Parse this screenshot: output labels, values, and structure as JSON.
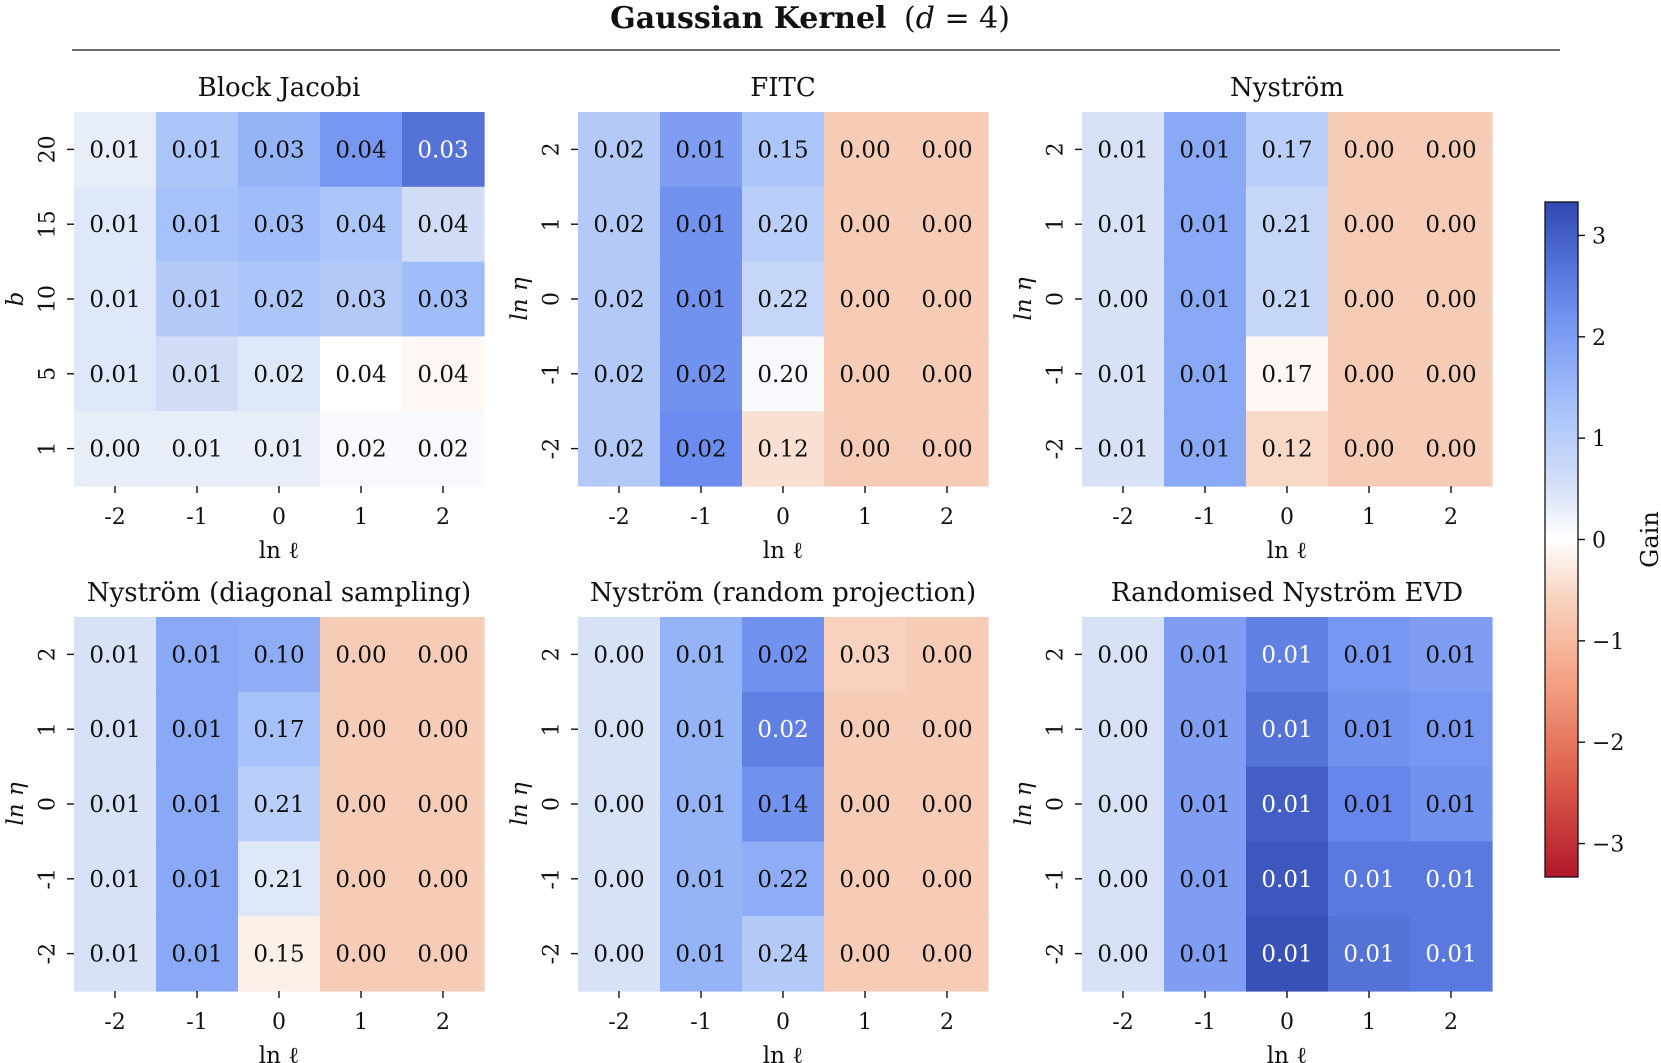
{
  "chart_data": {
    "type": "heatmap",
    "title": "Gaussian Kernel (d = 4)",
    "title_parts": {
      "bold": "Gaussian Kernel",
      "paren_open": "(",
      "var": "d",
      "rest": " = 4)"
    },
    "colorbar": {
      "label": "Gain",
      "vmin": -3.33,
      "vmax": 3.33,
      "ticks": [
        3,
        2,
        1,
        0,
        -1,
        -2,
        -3
      ],
      "tick_labels": [
        "3",
        "2",
        "1",
        "0",
        "−1",
        "−2",
        "−3"
      ],
      "colormap": "coolwarm_r"
    },
    "panels": [
      {
        "title": "Block Jacobi",
        "xlabel": "ln ℓ",
        "ylabel": "b",
        "x_ticks": [
          "-2",
          "-1",
          "0",
          "1",
          "2"
        ],
        "y_ticks": [
          "20",
          "15",
          "10",
          "5",
          "1"
        ],
        "gain": [
          [
            0.3,
            1.2,
            1.6,
            2.1,
            2.7
          ],
          [
            0.4,
            1.3,
            1.4,
            1.2,
            0.6
          ],
          [
            0.4,
            1.1,
            1.2,
            1.1,
            1.4
          ],
          [
            0.4,
            0.6,
            0.4,
            0.0,
            -0.1
          ],
          [
            0.3,
            0.3,
            0.3,
            0.1,
            0.1
          ]
        ],
        "labels": [
          [
            "0.01",
            "0.01",
            "0.03",
            "0.04",
            "0.03"
          ],
          [
            "0.01",
            "0.01",
            "0.03",
            "0.04",
            "0.04"
          ],
          [
            "0.01",
            "0.01",
            "0.02",
            "0.03",
            "0.03"
          ],
          [
            "0.01",
            "0.01",
            "0.02",
            "0.04",
            "0.04"
          ],
          [
            "0.00",
            "0.01",
            "0.01",
            "0.02",
            "0.02"
          ]
        ]
      },
      {
        "title": "FITC",
        "xlabel": "ln ℓ",
        "ylabel": "ln η",
        "x_ticks": [
          "-2",
          "-1",
          "0",
          "1",
          "2"
        ],
        "y_ticks": [
          "2",
          "1",
          "0",
          "-1",
          "-2"
        ],
        "gain": [
          [
            1.1,
            2.0,
            1.2,
            -0.7,
            -0.7
          ],
          [
            1.1,
            2.2,
            1.0,
            -0.7,
            -0.7
          ],
          [
            1.1,
            2.2,
            0.8,
            -0.7,
            -0.7
          ],
          [
            1.1,
            2.2,
            0.1,
            -0.7,
            -0.7
          ],
          [
            1.1,
            2.3,
            -0.4,
            -0.7,
            -0.7
          ]
        ],
        "labels": [
          [
            "0.02",
            "0.01",
            "0.15",
            "0.00",
            "0.00"
          ],
          [
            "0.02",
            "0.01",
            "0.20",
            "0.00",
            "0.00"
          ],
          [
            "0.02",
            "0.01",
            "0.22",
            "0.00",
            "0.00"
          ],
          [
            "0.02",
            "0.02",
            "0.20",
            "0.00",
            "0.00"
          ],
          [
            "0.02",
            "0.02",
            "0.12",
            "0.00",
            "0.00"
          ]
        ]
      },
      {
        "title": "Nyström",
        "xlabel": "ln ℓ",
        "ylabel": "ln η",
        "x_ticks": [
          "-2",
          "-1",
          "0",
          "1",
          "2"
        ],
        "y_ticks": [
          "2",
          "1",
          "0",
          "-1",
          "-2"
        ],
        "gain": [
          [
            0.5,
            1.8,
            1.0,
            -0.7,
            -0.7
          ],
          [
            0.5,
            1.8,
            0.8,
            -0.7,
            -0.7
          ],
          [
            0.5,
            1.8,
            0.8,
            -0.7,
            -0.7
          ],
          [
            0.5,
            1.8,
            -0.1,
            -0.7,
            -0.7
          ],
          [
            0.5,
            1.8,
            -0.5,
            -0.7,
            -0.7
          ]
        ],
        "labels": [
          [
            "0.01",
            "0.01",
            "0.17",
            "0.00",
            "0.00"
          ],
          [
            "0.01",
            "0.01",
            "0.21",
            "0.00",
            "0.00"
          ],
          [
            "0.00",
            "0.01",
            "0.21",
            "0.00",
            "0.00"
          ],
          [
            "0.01",
            "0.01",
            "0.17",
            "0.00",
            "0.00"
          ],
          [
            "0.01",
            "0.01",
            "0.12",
            "0.00",
            "0.00"
          ]
        ]
      },
      {
        "title": "Nyström (diagonal sampling)",
        "xlabel": "ln ℓ",
        "ylabel": "ln η",
        "x_ticks": [
          "-2",
          "-1",
          "0",
          "1",
          "2"
        ],
        "y_ticks": [
          "2",
          "1",
          "0",
          "-1",
          "-2"
        ],
        "gain": [
          [
            0.5,
            1.8,
            1.7,
            -0.7,
            -0.7
          ],
          [
            0.5,
            1.8,
            1.3,
            -0.7,
            -0.7
          ],
          [
            0.5,
            1.8,
            1.0,
            -0.7,
            -0.7
          ],
          [
            0.5,
            1.8,
            0.4,
            -0.7,
            -0.7
          ],
          [
            0.5,
            1.8,
            -0.2,
            -0.7,
            -0.7
          ]
        ],
        "labels": [
          [
            "0.01",
            "0.01",
            "0.10",
            "0.00",
            "0.00"
          ],
          [
            "0.01",
            "0.01",
            "0.17",
            "0.00",
            "0.00"
          ],
          [
            "0.01",
            "0.01",
            "0.21",
            "0.00",
            "0.00"
          ],
          [
            "0.01",
            "0.01",
            "0.21",
            "0.00",
            "0.00"
          ],
          [
            "0.01",
            "0.01",
            "0.15",
            "0.00",
            "0.00"
          ]
        ]
      },
      {
        "title": "Nyström (random projection)",
        "xlabel": "ln ℓ",
        "ylabel": "ln η",
        "x_ticks": [
          "-2",
          "-1",
          "0",
          "1",
          "2"
        ],
        "y_ticks": [
          "2",
          "1",
          "0",
          "-1",
          "-2"
        ],
        "gain": [
          [
            0.5,
            1.6,
            2.2,
            -0.6,
            -0.7
          ],
          [
            0.5,
            1.6,
            2.5,
            -0.7,
            -0.7
          ],
          [
            0.5,
            1.6,
            2.2,
            -0.7,
            -0.7
          ],
          [
            0.5,
            1.6,
            1.7,
            -0.7,
            -0.7
          ],
          [
            0.5,
            1.6,
            1.1,
            -0.7,
            -0.7
          ]
        ],
        "labels": [
          [
            "0.00",
            "0.01",
            "0.02",
            "0.03",
            "0.00"
          ],
          [
            "0.00",
            "0.01",
            "0.02",
            "0.00",
            "0.00"
          ],
          [
            "0.00",
            "0.01",
            "0.14",
            "0.00",
            "0.00"
          ],
          [
            "0.00",
            "0.01",
            "0.22",
            "0.00",
            "0.00"
          ],
          [
            "0.00",
            "0.01",
            "0.24",
            "0.00",
            "0.00"
          ]
        ]
      },
      {
        "title": "Randomised Nyström EVD",
        "xlabel": "ln ℓ",
        "ylabel": "ln η",
        "x_ticks": [
          "-2",
          "-1",
          "0",
          "1",
          "2"
        ],
        "y_ticks": [
          "2",
          "1",
          "0",
          "-1",
          "-2"
        ],
        "gain": [
          [
            0.5,
            2.0,
            2.5,
            2.1,
            2.0
          ],
          [
            0.5,
            2.0,
            2.7,
            2.2,
            2.1
          ],
          [
            0.5,
            2.0,
            3.0,
            2.4,
            2.2
          ],
          [
            0.5,
            2.0,
            3.1,
            2.6,
            2.6
          ],
          [
            0.5,
            2.0,
            3.2,
            2.7,
            2.6
          ]
        ],
        "labels": [
          [
            "0.00",
            "0.01",
            "0.01",
            "0.01",
            "0.01"
          ],
          [
            "0.00",
            "0.01",
            "0.01",
            "0.01",
            "0.01"
          ],
          [
            "0.00",
            "0.01",
            "0.01",
            "0.01",
            "0.01"
          ],
          [
            "0.00",
            "0.01",
            "0.01",
            "0.01",
            "0.01"
          ],
          [
            "0.00",
            "0.01",
            "0.01",
            "0.01",
            "0.01"
          ]
        ]
      }
    ]
  }
}
